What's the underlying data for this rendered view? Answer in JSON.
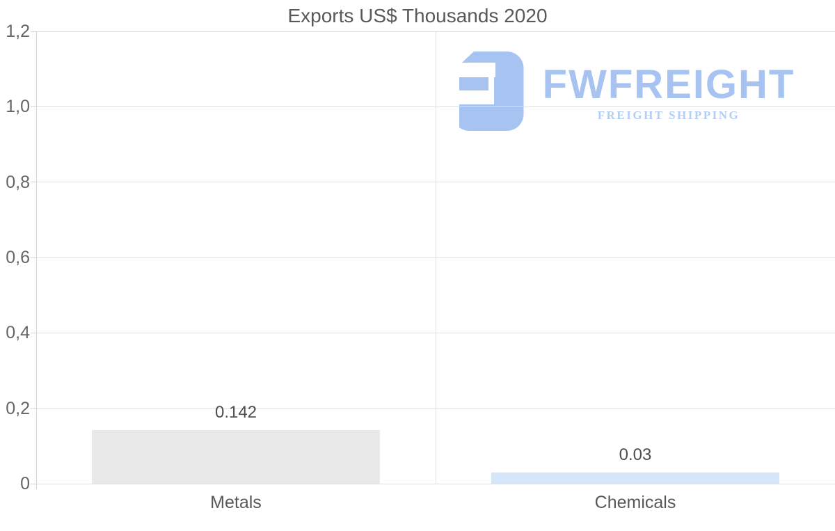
{
  "title": "Exports US$ Thousands 2020",
  "watermark": {
    "brand": "FWFREIGHT",
    "tagline": "FREIGHT SHIPPING",
    "logo_icon": "fwfreight-logo-mark",
    "brand_color": "#a6c3f1",
    "tagline_color": "#b3cdf5"
  },
  "colors": {
    "background": "#ffffff",
    "grid": "#e0e0e0",
    "axis": "#d4d4d4",
    "title_text": "#58595b",
    "tick_text": "#666666",
    "label_text": "#58585a",
    "value_text": "#4d4d4d"
  },
  "chart_data": {
    "type": "bar",
    "title": "Exports US$ Thousands 2020",
    "xlabel": "",
    "ylabel": "",
    "categories": [
      "Metals",
      "Chemicals"
    ],
    "values": [
      0.142,
      0.03
    ],
    "value_labels": [
      "0.142",
      "0.03"
    ],
    "bar_colors": [
      "#e9e9e9",
      "#d5e6f8"
    ],
    "ylim": [
      0,
      1.2
    ],
    "yticks": [
      {
        "value": 0,
        "label": "0"
      },
      {
        "value": 0.2,
        "label": "0,2"
      },
      {
        "value": 0.4,
        "label": "0,4"
      },
      {
        "value": 0.6,
        "label": "0,6"
      },
      {
        "value": 0.8,
        "label": "0,8"
      },
      {
        "value": 1.0,
        "label": "1,0"
      },
      {
        "value": 1.2,
        "label": "1,2"
      }
    ],
    "grid": "horizontal gridlines + vertical category divider",
    "legend_position": "none",
    "decimal_style": {
      "axis": "comma",
      "data_labels": "dot"
    }
  }
}
